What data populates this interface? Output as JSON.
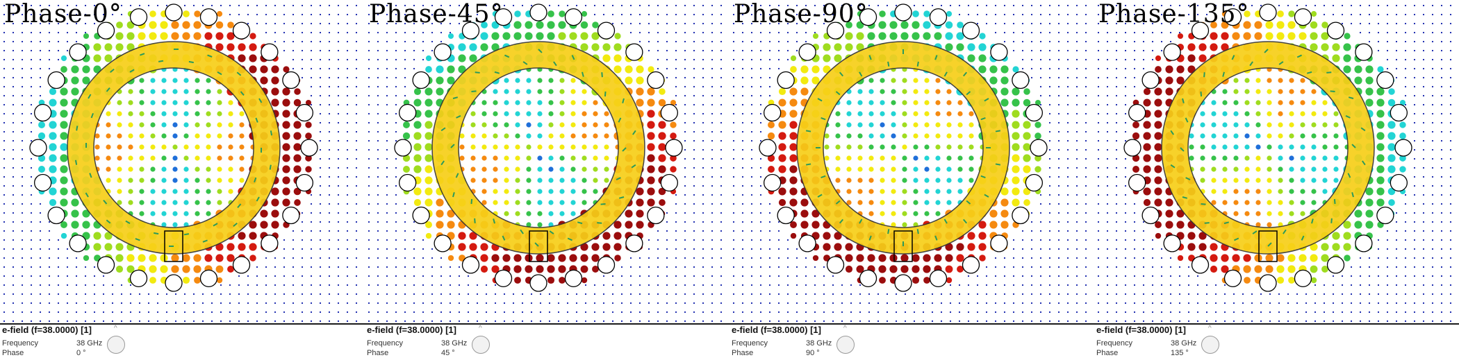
{
  "panels": [
    {
      "title": "Phase-0°",
      "field_label": "e-field (f=38.0000) [1]",
      "freq_label": "Frequency",
      "freq_value": "38 GHz",
      "phase_label": "Phase",
      "phase_value": "0 °",
      "phase_deg": 0
    },
    {
      "title": "Phase-45°",
      "field_label": "e-field (f=38.0000) [1]",
      "freq_label": "Frequency",
      "freq_value": "38 GHz",
      "phase_label": "Phase",
      "phase_value": "45 °",
      "phase_deg": 45
    },
    {
      "title": "Phase-90°",
      "field_label": "e-field (f=38.0000) [1]",
      "freq_label": "Frequency",
      "freq_value": "38 GHz",
      "phase_label": "Phase",
      "phase_value": "90 °",
      "phase_deg": 90
    },
    {
      "title": "Phase-135°",
      "field_label": "e-field (f=38.0000) [1]",
      "freq_label": "Frequency",
      "freq_value": "38 GHz",
      "phase_label": "Phase",
      "phase_value": "135 °",
      "phase_deg": 135
    }
  ],
  "colors": {
    "ring": "#f7cf18",
    "ring_stroke": "#333333",
    "via_stroke": "#000000",
    "field_scale": [
      "#0a1aa8",
      "#1f6fd9",
      "#22d4d4",
      "#36c24a",
      "#9fdc1f",
      "#f2ea10",
      "#f58a10",
      "#d41a10",
      "#9b0d0d"
    ],
    "arrow": "#2a9a5a"
  }
}
